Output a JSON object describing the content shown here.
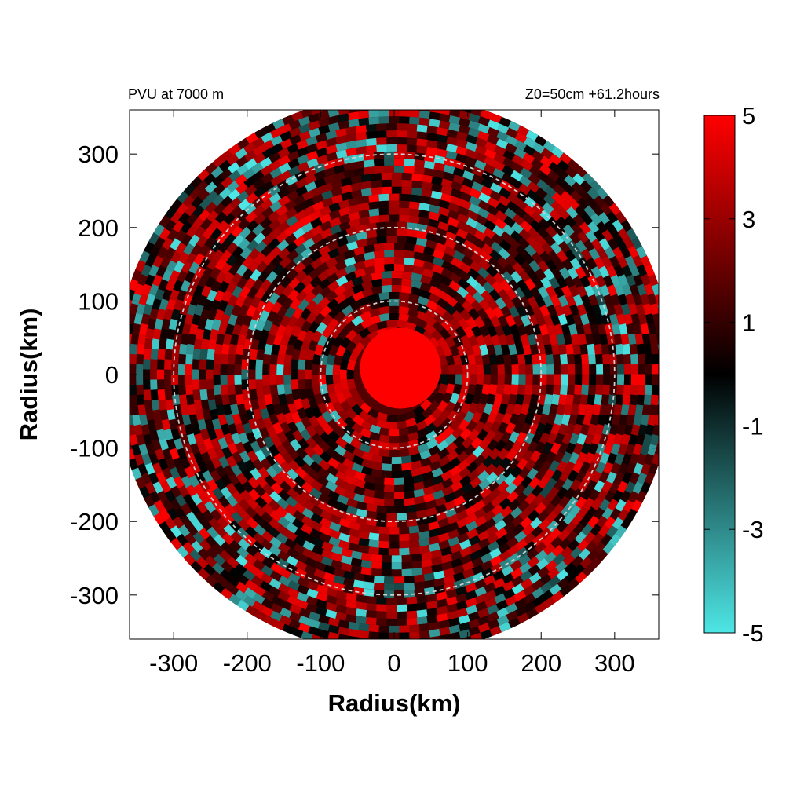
{
  "chart_data": {
    "type": "heatmap",
    "title_left": "PVU at  7000 m",
    "title_right": "Z0=50cm  +61.2hours",
    "xlabel": "Radius(km)",
    "ylabel": "Radius(km)",
    "xlim": [
      -360,
      360
    ],
    "ylim": [
      -360,
      360
    ],
    "xticks": [
      -300,
      -200,
      -100,
      0,
      100,
      200,
      300
    ],
    "yticks": [
      300,
      200,
      100,
      0,
      -100,
      -200,
      -300
    ],
    "domain_radius_km": 380,
    "reference_circles_km": [
      100,
      200,
      300
    ],
    "colorbar": {
      "range": [
        -5,
        5
      ],
      "ticks": [
        5,
        3,
        1,
        -1,
        -3,
        -5
      ],
      "colors": {
        "low": "#4ee6e6",
        "mid": "#000000",
        "high": "#ff0000"
      }
    },
    "features": {
      "core_radius_km": 55,
      "core_value": 5
    }
  }
}
